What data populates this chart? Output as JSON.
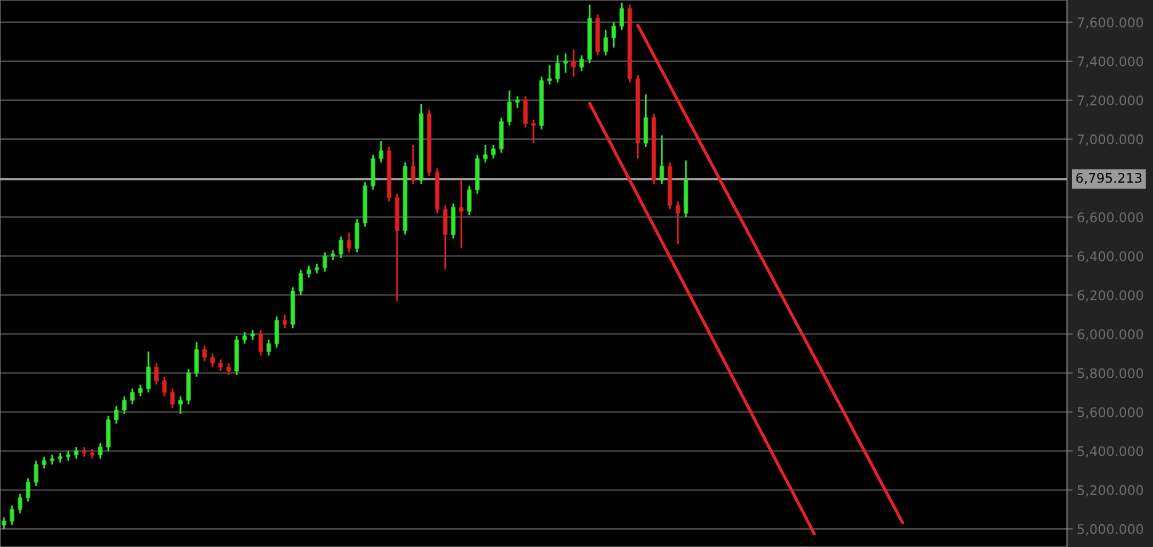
{
  "chart_data": {
    "type": "candlestick",
    "categories": [
      null,
      null,
      null,
      null,
      null,
      null,
      null,
      null,
      null,
      null,
      null,
      null,
      null,
      null,
      null,
      null,
      null,
      null,
      null,
      null,
      null,
      null,
      null,
      null,
      null,
      null,
      null,
      null,
      null,
      null,
      null,
      null,
      null,
      null,
      null,
      null,
      null,
      null,
      null,
      null,
      null,
      null,
      null,
      null,
      null,
      null,
      null,
      null,
      null,
      null,
      null,
      null,
      null,
      null,
      null,
      null,
      null,
      null,
      null,
      null,
      null,
      null,
      null,
      null,
      null,
      null,
      null,
      null,
      null,
      null,
      null,
      null,
      null,
      null,
      null,
      null,
      null,
      null,
      null,
      null,
      null,
      null,
      null,
      null,
      null,
      null,
      null,
      null,
      null,
      null,
      null,
      null,
      null,
      null,
      null,
      null,
      null,
      null,
      null,
      null,
      null,
      null,
      null,
      null,
      null,
      null,
      null,
      null,
      null,
      null,
      null,
      null,
      null,
      null,
      null,
      null,
      null,
      null,
      null,
      null,
      null,
      null,
      null,
      null,
      null,
      null,
      null,
      null,
      null,
      null,
      null,
      null,
      null
    ],
    "ohlc": [
      [
        5020,
        5060,
        5000,
        5040
      ],
      [
        5040,
        5120,
        5020,
        5100
      ],
      [
        5100,
        5180,
        5080,
        5160
      ],
      [
        5160,
        5260,
        5140,
        5240
      ],
      [
        5240,
        5350,
        5220,
        5330
      ],
      [
        5330,
        5370,
        5310,
        5350
      ],
      [
        5350,
        5380,
        5330,
        5360
      ],
      [
        5360,
        5390,
        5340,
        5370
      ],
      [
        5370,
        5400,
        5350,
        5380
      ],
      [
        5380,
        5420,
        5360,
        5400
      ],
      [
        5400,
        5420,
        5370,
        5390
      ],
      [
        5390,
        5410,
        5360,
        5380
      ],
      [
        5380,
        5440,
        5360,
        5420
      ],
      [
        5420,
        5580,
        5400,
        5560
      ],
      [
        5560,
        5630,
        5540,
        5610
      ],
      [
        5610,
        5680,
        5590,
        5660
      ],
      [
        5660,
        5720,
        5640,
        5700
      ],
      [
        5700,
        5740,
        5680,
        5720
      ],
      [
        5720,
        5910,
        5700,
        5830
      ],
      [
        5830,
        5850,
        5740,
        5760
      ],
      [
        5760,
        5780,
        5680,
        5700
      ],
      [
        5700,
        5720,
        5620,
        5640
      ],
      [
        5640,
        5680,
        5590,
        5660
      ],
      [
        5660,
        5820,
        5640,
        5800
      ],
      [
        5800,
        5960,
        5780,
        5920
      ],
      [
        5920,
        5940,
        5860,
        5880
      ],
      [
        5880,
        5900,
        5830,
        5850
      ],
      [
        5850,
        5870,
        5810,
        5830
      ],
      [
        5830,
        5850,
        5790,
        5810
      ],
      [
        5810,
        5990,
        5790,
        5970
      ],
      [
        5970,
        6010,
        5950,
        5990
      ],
      [
        5990,
        6020,
        5970,
        6000
      ],
      [
        6000,
        6020,
        5890,
        5910
      ],
      [
        5910,
        5970,
        5890,
        5950
      ],
      [
        5950,
        6090,
        5930,
        6070
      ],
      [
        6070,
        6100,
        6030,
        6050
      ],
      [
        6050,
        6240,
        6030,
        6220
      ],
      [
        6220,
        6330,
        6200,
        6310
      ],
      [
        6310,
        6350,
        6290,
        6330
      ],
      [
        6330,
        6360,
        6310,
        6340
      ],
      [
        6340,
        6420,
        6320,
        6400
      ],
      [
        6400,
        6430,
        6380,
        6410
      ],
      [
        6410,
        6500,
        6390,
        6480
      ],
      [
        6480,
        6520,
        6420,
        6440
      ],
      [
        6440,
        6590,
        6420,
        6570
      ],
      [
        6570,
        6780,
        6550,
        6760
      ],
      [
        6760,
        6920,
        6740,
        6900
      ],
      [
        6900,
        6990,
        6880,
        6940
      ],
      [
        6940,
        6960,
        6680,
        6700
      ],
      [
        6700,
        6720,
        6170,
        6530
      ],
      [
        6530,
        6880,
        6510,
        6860
      ],
      [
        6860,
        6970,
        6770,
        6790
      ],
      [
        6790,
        7180,
        6770,
        7130
      ],
      [
        7130,
        7150,
        6810,
        6830
      ],
      [
        6830,
        6850,
        6620,
        6640
      ],
      [
        6640,
        6660,
        6330,
        6510
      ],
      [
        6510,
        6670,
        6490,
        6650
      ],
      [
        6650,
        6790,
        6440,
        6630
      ],
      [
        6630,
        6760,
        6610,
        6740
      ],
      [
        6740,
        6920,
        6720,
        6900
      ],
      [
        6900,
        6970,
        6880,
        6920
      ],
      [
        6920,
        6970,
        6900,
        6950
      ],
      [
        6950,
        7110,
        6930,
        7090
      ],
      [
        7090,
        7250,
        7070,
        7190
      ],
      [
        7190,
        7220,
        7160,
        7200
      ],
      [
        7200,
        7220,
        7060,
        7080
      ],
      [
        7080,
        7100,
        6980,
        7070
      ],
      [
        7070,
        7320,
        7050,
        7300
      ],
      [
        7300,
        7380,
        7280,
        7310
      ],
      [
        7310,
        7430,
        7290,
        7390
      ],
      [
        7390,
        7440,
        7340,
        7400
      ],
      [
        7400,
        7460,
        7320,
        7370
      ],
      [
        7370,
        7430,
        7350,
        7410
      ],
      [
        7410,
        7690,
        7390,
        7620
      ],
      [
        7620,
        7640,
        7430,
        7450
      ],
      [
        7450,
        7560,
        7430,
        7520
      ],
      [
        7520,
        7600,
        7470,
        7580
      ],
      [
        7580,
        7700,
        7560,
        7670
      ],
      [
        7670,
        7690,
        7290,
        7310
      ],
      [
        7310,
        7330,
        6900,
        6980
      ],
      [
        6980,
        7230,
        6960,
        7110
      ],
      [
        7110,
        7130,
        6770,
        6790
      ],
      [
        6790,
        7020,
        6770,
        6860
      ],
      [
        6860,
        6880,
        6640,
        6660
      ],
      [
        6660,
        6680,
        6460,
        6620
      ],
      [
        6620,
        6890,
        6600,
        6795
      ],
      null,
      null,
      null,
      null,
      null,
      null,
      null,
      null,
      null,
      null,
      null,
      null,
      null,
      null,
      null,
      null,
      null,
      null,
      null,
      null,
      null,
      null,
      null,
      null,
      null,
      null,
      null,
      null,
      null,
      null,
      null,
      null,
      null,
      null,
      null,
      null,
      null,
      null,
      null,
      null,
      null,
      null,
      null,
      null,
      null,
      null,
      null
    ],
    "colors": [
      "#2ee82e",
      "#2ee82e",
      "#2ee82e",
      "#2ee82e",
      "#2ee82e",
      "#2ee82e",
      "#2ee82e",
      "#2ee82e",
      "#2ee82e",
      "#2ee82e",
      "#e02020",
      "#e02020",
      "#2ee82e",
      "#2ee82e",
      "#2ee82e",
      "#2ee82e",
      "#2ee82e",
      "#2ee82e",
      "#2ee82e",
      "#e02020",
      "#e02020",
      "#e02020",
      "#2ee82e",
      "#2ee82e",
      "#2ee82e",
      "#e02020",
      "#e02020",
      "#e02020",
      "#e02020",
      "#2ee82e",
      "#2ee82e",
      "#2ee82e",
      "#e02020",
      "#2ee82e",
      "#2ee82e",
      "#e02020",
      "#2ee82e",
      "#2ee82e",
      "#2ee82e",
      "#2ee82e",
      "#2ee82e",
      "#2ee82e",
      "#2ee82e",
      "#e02020",
      "#2ee82e",
      "#2ee82e",
      "#2ee82e",
      "#2ee82e",
      "#e02020",
      "#e02020",
      "#2ee82e",
      "#e02020",
      "#2ee82e",
      "#e02020",
      "#e02020",
      "#e02020",
      "#2ee82e",
      "#e02020",
      "#2ee82e",
      "#2ee82e",
      "#2ee82e",
      "#2ee82e",
      "#2ee82e",
      "#2ee82e",
      "#2ee82e",
      "#e02020",
      "#e02020",
      "#2ee82e",
      "#2ee82e",
      "#2ee82e",
      "#2ee82e",
      "#e02020",
      "#2ee82e",
      "#2ee82e",
      "#e02020",
      "#2ee82e",
      "#2ee82e",
      "#2ee82e",
      "#e02020",
      "#e02020",
      "#2ee82e",
      "#e02020",
      "#2ee82e",
      "#e02020",
      "#e02020",
      "#2ee82e",
      null,
      null,
      null,
      null,
      null,
      null,
      null,
      null,
      null,
      null,
      null,
      null,
      null,
      null,
      null,
      null,
      null,
      null,
      null,
      null,
      null,
      null,
      null,
      null,
      null,
      null,
      null,
      null,
      null,
      null,
      null,
      null,
      null,
      null,
      null,
      null,
      null,
      null,
      null,
      null,
      null,
      null,
      null,
      null,
      null,
      null,
      null
    ],
    "series": [
      {
        "type": "line",
        "color": "#e8202a",
        "values": [
          null,
          null,
          null,
          null,
          null,
          null,
          null,
          null,
          null,
          null,
          null,
          null,
          null,
          null,
          null,
          null,
          null,
          null,
          null,
          null,
          null,
          null,
          null,
          null,
          null,
          null,
          null,
          null,
          null,
          null,
          null,
          null,
          null,
          null,
          null,
          null,
          null,
          null,
          null,
          null,
          null,
          null,
          null,
          null,
          null,
          null,
          null,
          null,
          null,
          null,
          null,
          null,
          null,
          null,
          null,
          null,
          null,
          null,
          null,
          null,
          null,
          null,
          null,
          null,
          null,
          null,
          null,
          null,
          null,
          null,
          null,
          null,
          null,
          null,
          null,
          null,
          null,
          null,
          null,
          7584,
          7507,
          7429,
          7352,
          7275,
          7197,
          7120,
          7043,
          6965,
          6888,
          6811,
          6733,
          6656,
          6579,
          6501,
          6424,
          6347,
          6269,
          6192,
          6115,
          6037,
          5960,
          5883,
          5806,
          5728,
          5651,
          5574,
          5496,
          5419,
          5342,
          5264,
          5187,
          5110,
          5032,
          null,
          null,
          null,
          null,
          null,
          null,
          null,
          null,
          null,
          null,
          null,
          null,
          null,
          null,
          null,
          null,
          null,
          null,
          null,
          null
        ]
      },
      {
        "type": "line",
        "color": "#e8202a",
        "values": [
          null,
          null,
          null,
          null,
          null,
          null,
          null,
          null,
          null,
          null,
          null,
          null,
          null,
          null,
          null,
          null,
          null,
          null,
          null,
          null,
          null,
          null,
          null,
          null,
          null,
          null,
          null,
          null,
          null,
          null,
          null,
          null,
          null,
          null,
          null,
          null,
          null,
          null,
          null,
          null,
          null,
          null,
          null,
          null,
          null,
          null,
          null,
          null,
          null,
          null,
          null,
          null,
          null,
          null,
          null,
          null,
          null,
          null,
          null,
          null,
          null,
          null,
          null,
          null,
          null,
          null,
          null,
          null,
          null,
          null,
          null,
          null,
          null,
          7184,
          7105,
          7026,
          6947,
          6868,
          6789,
          6711,
          6632,
          6553,
          6474,
          6395,
          6316,
          6237,
          6158,
          6079,
          6000,
          5922,
          5843,
          5764,
          5685,
          5606,
          5527,
          5448,
          5369,
          5290,
          5212,
          5133,
          5054,
          4975,
          null,
          null,
          null,
          null,
          null,
          null,
          null,
          null,
          null,
          null,
          null,
          null,
          null,
          null,
          null,
          null,
          null,
          null,
          null,
          null,
          null,
          null,
          null,
          null,
          null,
          null,
          null,
          null,
          null,
          null,
          null
        ]
      }
    ],
    "ylim": [
      4907,
      7714
    ],
    "yticks": [
      {
        "value": 5000,
        "label": "5,000.000"
      },
      {
        "value": 5200,
        "label": "5,200.000"
      },
      {
        "value": 5400,
        "label": "5,400.000"
      },
      {
        "value": 5600,
        "label": "5,600.000"
      },
      {
        "value": 5800,
        "label": "5,800.000"
      },
      {
        "value": 6000,
        "label": "6,000.000"
      },
      {
        "value": 6200,
        "label": "6,200.000"
      },
      {
        "value": 6400,
        "label": "6,400.000"
      },
      {
        "value": 6600,
        "label": "6,600.000"
      },
      {
        "value": 7000,
        "label": "7,000.000"
      },
      {
        "value": 7200,
        "label": "7,200.000"
      },
      {
        "value": 7400,
        "label": "7,400.000"
      },
      {
        "value": 7600,
        "label": "7,600.000"
      }
    ],
    "ref_lines": [
      {
        "axis": "y",
        "value": 6795.213,
        "label": "6,795.213",
        "color": "#9a9a9a"
      }
    ],
    "grid": "y",
    "tick_labels": "y"
  }
}
